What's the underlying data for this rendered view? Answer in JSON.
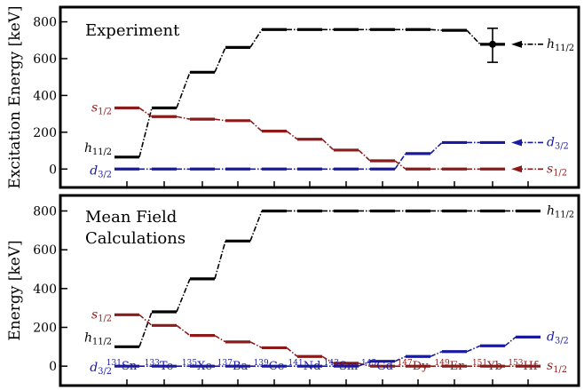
{
  "colors": {
    "h": "#000000",
    "s": "#8b1a1a",
    "d": "#1a1aa0",
    "axis": "#000000"
  },
  "x_labels": [
    {
      "mass": "131",
      "el": "Sn",
      "color": "#1a1aa0"
    },
    {
      "mass": "133",
      "el": "Te",
      "color": "#1a1aa0"
    },
    {
      "mass": "135",
      "el": "Xe",
      "color": "#1a1aa0"
    },
    {
      "mass": "137",
      "el": "Ba",
      "color": "#1a1aa0"
    },
    {
      "mass": "139",
      "el": "Ce",
      "color": "#1a1aa0"
    },
    {
      "mass": "141",
      "el": "Nd",
      "color": "#1a1aa0"
    },
    {
      "mass": "143",
      "el": "Sm",
      "color": "#1a1aa0"
    },
    {
      "mass": "145",
      "el": "Gd",
      "color": "#1a1aa0"
    },
    {
      "mass": "147",
      "el": "Dy",
      "color": "#8b1a1a"
    },
    {
      "mass": "149",
      "el": "Er",
      "color": "#8b1a1a"
    },
    {
      "mass": "151",
      "el": "Yb",
      "color": "#8b1a1a"
    },
    {
      "mass": "153",
      "el": "Hf",
      "color": "#8b1a1a"
    }
  ],
  "chart_data": [
    {
      "type": "line",
      "title": "Experiment",
      "ylabel": "Excitation Energy [keV]",
      "ylim": [
        -100,
        880
      ],
      "yticks": [
        0,
        200,
        400,
        600,
        800
      ],
      "categories": [
        "131Sn",
        "133Te",
        "135Xe",
        "137Ba",
        "139Ce",
        "141Nd",
        "143Sm",
        "145Gd",
        "147Dy",
        "149Er",
        "151Yb",
        "153Hf"
      ],
      "series": [
        {
          "key": "h",
          "label_base": "h",
          "label_sub": "11/2",
          "values": [
            65,
            332,
            526,
            661,
            758,
            758,
            758,
            758,
            758,
            754,
            678,
            null
          ]
        },
        {
          "key": "s",
          "label_base": "s",
          "label_sub": "1/2",
          "values": [
            332,
            285,
            271,
            263,
            206,
            162,
            103,
            45,
            0,
            0,
            0,
            null
          ]
        },
        {
          "key": "d",
          "label_base": "d",
          "label_sub": "3/2",
          "values": [
            0,
            0,
            0,
            0,
            0,
            0,
            0,
            0,
            84,
            144,
            144,
            null
          ]
        }
      ],
      "annotations": [
        {
          "series": "h",
          "text_base": "h",
          "text_sub": "11/2",
          "value": 678
        },
        {
          "series": "d",
          "text_base": "d",
          "text_sub": "3/2",
          "value": 144
        },
        {
          "series": "s",
          "text_base": "s",
          "text_sub": "1/2",
          "value": 0
        }
      ],
      "errorbar": {
        "category": "151Yb",
        "value": 678,
        "low": 580,
        "high": 765
      }
    },
    {
      "type": "line",
      "title_lines": [
        "Mean Field",
        "Calculations"
      ],
      "ylabel": "Energy [keV]",
      "ylim": [
        -100,
        880
      ],
      "yticks": [
        0,
        200,
        400,
        600,
        800
      ],
      "categories": [
        "131Sn",
        "133Te",
        "135Xe",
        "137Ba",
        "139Ce",
        "141Nd",
        "143Sm",
        "145Gd",
        "147Dy",
        "149Er",
        "151Yb",
        "153Hf"
      ],
      "series": [
        {
          "key": "h",
          "label_base": "h",
          "label_sub": "11/2",
          "values": [
            100,
            280,
            450,
            645,
            800,
            800,
            800,
            800,
            800,
            800,
            800,
            800
          ]
        },
        {
          "key": "s",
          "label_base": "s",
          "label_sub": "1/2",
          "values": [
            265,
            210,
            158,
            125,
            95,
            50,
            15,
            0,
            0,
            0,
            0,
            0
          ]
        },
        {
          "key": "d",
          "label_base": "d",
          "label_sub": "3/2",
          "values": [
            0,
            0,
            0,
            0,
            0,
            0,
            0,
            25,
            50,
            75,
            105,
            150
          ]
        }
      ],
      "right_labels": [
        {
          "series": "h",
          "text_base": "h",
          "text_sub": "11/2",
          "value": 800
        },
        {
          "series": "d",
          "text_base": "d",
          "text_sub": "3/2",
          "value": 150
        },
        {
          "series": "s",
          "text_base": "s",
          "text_sub": "1/2",
          "value": 0
        }
      ]
    }
  ]
}
